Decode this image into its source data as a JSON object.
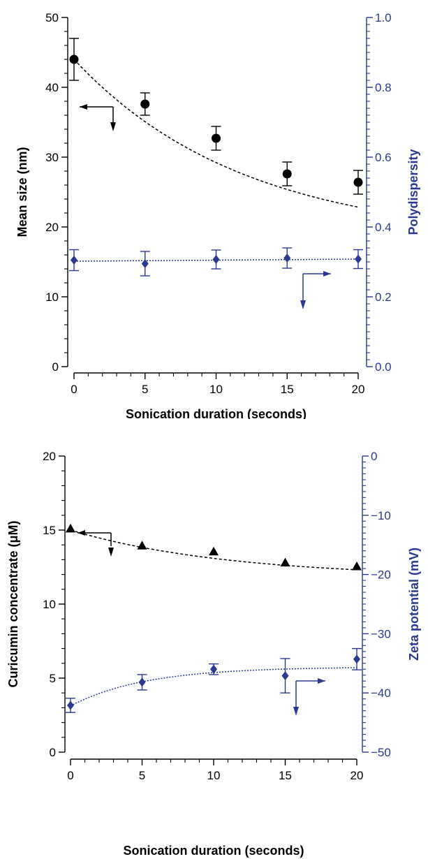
{
  "chart_data": [
    {
      "type": "scatter",
      "xlabel": "Sonication duration (seconds)",
      "ylabel": "Mean size (nm)",
      "y2label": "Polydispersity",
      "xlim": [
        0,
        20
      ],
      "ylim": [
        0,
        50
      ],
      "y2lim": [
        0.0,
        1.0
      ],
      "xticks": [
        "0",
        "5",
        "10",
        "15",
        "20"
      ],
      "yticks": [
        "0",
        "10",
        "20",
        "30",
        "40",
        "50"
      ],
      "y2ticks": [
        "0.0",
        "0.2",
        "0.4",
        "0.6",
        "0.8",
        "1.0"
      ],
      "colors": {
        "left": "#000000",
        "right": "#2b3990"
      },
      "series": [
        {
          "axis": "left",
          "marker": "circle",
          "x": [
            0,
            5,
            10,
            15,
            20
          ],
          "values": [
            44.0,
            37.6,
            32.7,
            27.6,
            26.4
          ],
          "errors": [
            3.0,
            1.6,
            1.7,
            1.7,
            1.7
          ],
          "fit": "dashed"
        },
        {
          "axis": "right",
          "marker": "diamond",
          "x": [
            0,
            5,
            10,
            15,
            20
          ],
          "values": [
            0.305,
            0.295,
            0.307,
            0.311,
            0.308
          ],
          "errors": [
            0.03,
            0.035,
            0.027,
            0.029,
            0.027
          ],
          "fit": "dotted"
        }
      ],
      "indicators": [
        {
          "axis": "left",
          "points_to": "left"
        },
        {
          "axis": "right",
          "points_to": "right"
        }
      ]
    },
    {
      "type": "scatter",
      "xlabel": "Sonication duration (seconds)",
      "ylabel": "Curicumin concentrate (μM)",
      "y2label": "Zeta potential (mV)",
      "xlim": [
        0,
        20
      ],
      "ylim": [
        0,
        20
      ],
      "y2lim": [
        -50,
        0
      ],
      "xticks": [
        "0",
        "5",
        "10",
        "15",
        "20"
      ],
      "yticks": [
        "0",
        "5",
        "10",
        "15",
        "20"
      ],
      "y2ticks": [
        "−50",
        "−40",
        "−30",
        "−20",
        "−10",
        "0"
      ],
      "colors": {
        "left": "#000000",
        "right": "#2b3990"
      },
      "series": [
        {
          "axis": "left",
          "marker": "triangle",
          "x": [
            0,
            5,
            10,
            15,
            20
          ],
          "values": [
            15.1,
            13.95,
            13.55,
            12.8,
            12.55
          ],
          "errors": [],
          "fit": "dashed"
        },
        {
          "axis": "right",
          "marker": "diamond",
          "x": [
            0,
            5,
            10,
            15,
            20
          ],
          "values": [
            -42.1,
            -38.2,
            -36.0,
            -37.1,
            -34.3
          ],
          "errors": [
            1.2,
            1.3,
            0.9,
            2.9,
            1.8
          ],
          "fit": "dotted"
        }
      ],
      "indicators": [
        {
          "axis": "left",
          "points_to": "left"
        },
        {
          "axis": "right",
          "points_to": "right"
        }
      ]
    }
  ]
}
